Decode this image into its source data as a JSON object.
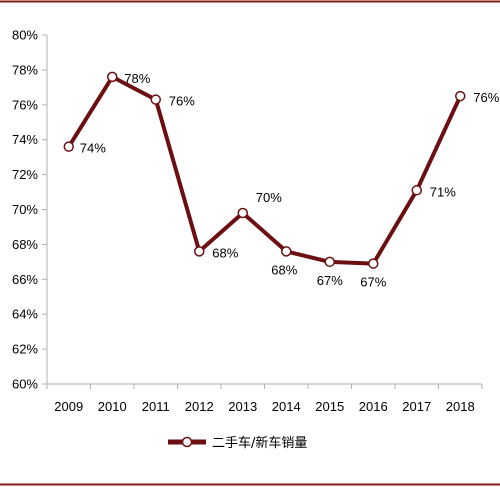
{
  "chart_data": {
    "type": "line",
    "title": "",
    "xlabel": "",
    "ylabel": "",
    "x": [
      "2009",
      "2010",
      "2011",
      "2012",
      "2013",
      "2014",
      "2015",
      "2016",
      "2017",
      "2018"
    ],
    "series": [
      {
        "name": "二手车/新车销量",
        "values": [
          73.6,
          77.6,
          76.3,
          67.6,
          69.8,
          67.6,
          67.0,
          66.9,
          71.1,
          76.5
        ],
        "labels": [
          "74%",
          "78%",
          "76%",
          "68%",
          "70%",
          "68%",
          "67%",
          "67%",
          "71%",
          "76%"
        ]
      }
    ],
    "y_ticks": [
      "60%",
      "62%",
      "64%",
      "66%",
      "68%",
      "70%",
      "72%",
      "74%",
      "76%",
      "78%",
      "80%"
    ],
    "ylim": [
      60,
      80
    ],
    "grid": false,
    "legend_position": "bottom",
    "colors": {
      "line": "#6b0f12",
      "frame": "#8b1a1a",
      "marker_fill": "#ffffff",
      "axis": "#b0b0b0"
    }
  }
}
